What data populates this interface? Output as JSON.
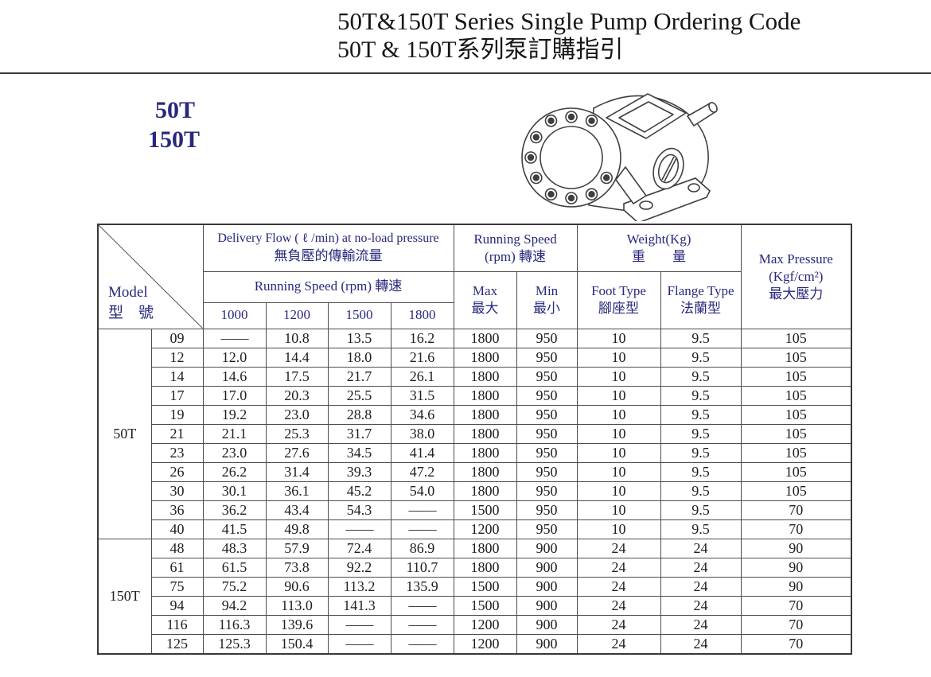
{
  "page": {
    "title_en": "50T&150T Series Single Pump Ordering Code",
    "title_zh": "50T & 150T系列泵訂購指引",
    "side_label_1": "50T",
    "side_label_2": "150T",
    "accent_color": "#28287e"
  },
  "illustration": {
    "name": "gear-pump-line-drawing"
  },
  "table": {
    "corner": {
      "en": "Model",
      "zh": "型　號"
    },
    "delivery_header": {
      "en": "Delivery Flow ( ℓ /min) at no-load pressure",
      "zh": "無負壓的傳輸流量"
    },
    "running_speed_sub": {
      "en": "Running Speed  (rpm)",
      "zh": "轉速"
    },
    "speed_columns": [
      "1000",
      "1200",
      "1500",
      "1800"
    ],
    "running_speed_group": {
      "en": "Running Speed",
      "zh": "(rpm) 轉速"
    },
    "max_col": {
      "en": "Max",
      "zh": "最大"
    },
    "min_col": {
      "en": "Min",
      "zh": "最小"
    },
    "weight_header": {
      "en": "Weight(Kg)",
      "zh": "重　　量"
    },
    "foot_col": {
      "en": "Foot Type",
      "zh": "腳座型"
    },
    "flange_col": {
      "en": "Flange Type",
      "zh": "法蘭型"
    },
    "pressure_header": {
      "en": "Max Pressure",
      "unit": "(Kgf/cm²)",
      "zh": "最大壓力"
    },
    "groups": [
      {
        "model_group": "50T",
        "rows": [
          {
            "model": "09",
            "flows": [
              "——",
              "10.8",
              "13.5",
              "16.2"
            ],
            "max": "1800",
            "min": "950",
            "foot": "10",
            "flange": "9.5",
            "pressure": "105"
          },
          {
            "model": "12",
            "flows": [
              "12.0",
              "14.4",
              "18.0",
              "21.6"
            ],
            "max": "1800",
            "min": "950",
            "foot": "10",
            "flange": "9.5",
            "pressure": "105"
          },
          {
            "model": "14",
            "flows": [
              "14.6",
              "17.5",
              "21.7",
              "26.1"
            ],
            "max": "1800",
            "min": "950",
            "foot": "10",
            "flange": "9.5",
            "pressure": "105"
          },
          {
            "model": "17",
            "flows": [
              "17.0",
              "20.3",
              "25.5",
              "31.5"
            ],
            "max": "1800",
            "min": "950",
            "foot": "10",
            "flange": "9.5",
            "pressure": "105"
          },
          {
            "model": "19",
            "flows": [
              "19.2",
              "23.0",
              "28.8",
              "34.6"
            ],
            "max": "1800",
            "min": "950",
            "foot": "10",
            "flange": "9.5",
            "pressure": "105"
          },
          {
            "model": "21",
            "flows": [
              "21.1",
              "25.3",
              "31.7",
              "38.0"
            ],
            "max": "1800",
            "min": "950",
            "foot": "10",
            "flange": "9.5",
            "pressure": "105"
          },
          {
            "model": "23",
            "flows": [
              "23.0",
              "27.6",
              "34.5",
              "41.4"
            ],
            "max": "1800",
            "min": "950",
            "foot": "10",
            "flange": "9.5",
            "pressure": "105"
          },
          {
            "model": "26",
            "flows": [
              "26.2",
              "31.4",
              "39.3",
              "47.2"
            ],
            "max": "1800",
            "min": "950",
            "foot": "10",
            "flange": "9.5",
            "pressure": "105"
          },
          {
            "model": "30",
            "flows": [
              "30.1",
              "36.1",
              "45.2",
              "54.0"
            ],
            "max": "1800",
            "min": "950",
            "foot": "10",
            "flange": "9.5",
            "pressure": "105"
          },
          {
            "model": "36",
            "flows": [
              "36.2",
              "43.4",
              "54.3",
              "——"
            ],
            "max": "1500",
            "min": "950",
            "foot": "10",
            "flange": "9.5",
            "pressure": "70"
          },
          {
            "model": "40",
            "flows": [
              "41.5",
              "49.8",
              "——",
              "——"
            ],
            "max": "1200",
            "min": "950",
            "foot": "10",
            "flange": "9.5",
            "pressure": "70"
          }
        ]
      },
      {
        "model_group": "150T",
        "rows": [
          {
            "model": "48",
            "flows": [
              "48.3",
              "57.9",
              "72.4",
              "86.9"
            ],
            "max": "1800",
            "min": "900",
            "foot": "24",
            "flange": "24",
            "pressure": "90"
          },
          {
            "model": "61",
            "flows": [
              "61.5",
              "73.8",
              "92.2",
              "110.7"
            ],
            "max": "1800",
            "min": "900",
            "foot": "24",
            "flange": "24",
            "pressure": "90"
          },
          {
            "model": "75",
            "flows": [
              "75.2",
              "90.6",
              "113.2",
              "135.9"
            ],
            "max": "1500",
            "min": "900",
            "foot": "24",
            "flange": "24",
            "pressure": "90"
          },
          {
            "model": "94",
            "flows": [
              "94.2",
              "113.0",
              "141.3",
              "——"
            ],
            "max": "1500",
            "min": "900",
            "foot": "24",
            "flange": "24",
            "pressure": "70"
          },
          {
            "model": "116",
            "flows": [
              "116.3",
              "139.6",
              "——",
              "——"
            ],
            "max": "1200",
            "min": "900",
            "foot": "24",
            "flange": "24",
            "pressure": "70"
          },
          {
            "model": "125",
            "flows": [
              "125.3",
              "150.4",
              "——",
              "——"
            ],
            "max": "1200",
            "min": "900",
            "foot": "24",
            "flange": "24",
            "pressure": "70"
          }
        ]
      }
    ]
  }
}
